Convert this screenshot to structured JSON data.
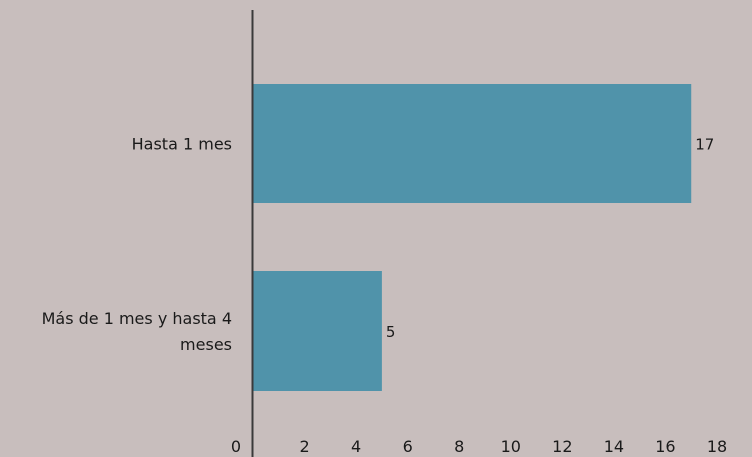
{
  "chart_data": {
    "type": "bar",
    "orientation": "horizontal",
    "categories": [
      [
        "Hasta 1 mes"
      ],
      [
        "Más de 1 mes y hasta 4",
        "meses"
      ]
    ],
    "values": [
      17,
      5
    ],
    "xlim": [
      0,
      18
    ],
    "x_ticks": [
      0,
      2,
      4,
      6,
      8,
      10,
      12,
      14,
      16,
      18
    ],
    "grid": false,
    "legend": "none",
    "title": "",
    "xlabel": "",
    "ylabel": "",
    "colors": {
      "background": "#c8bebd",
      "bar": "#5093aa",
      "axis": "#3a3a3a",
      "text": "#1a1a1a"
    }
  }
}
